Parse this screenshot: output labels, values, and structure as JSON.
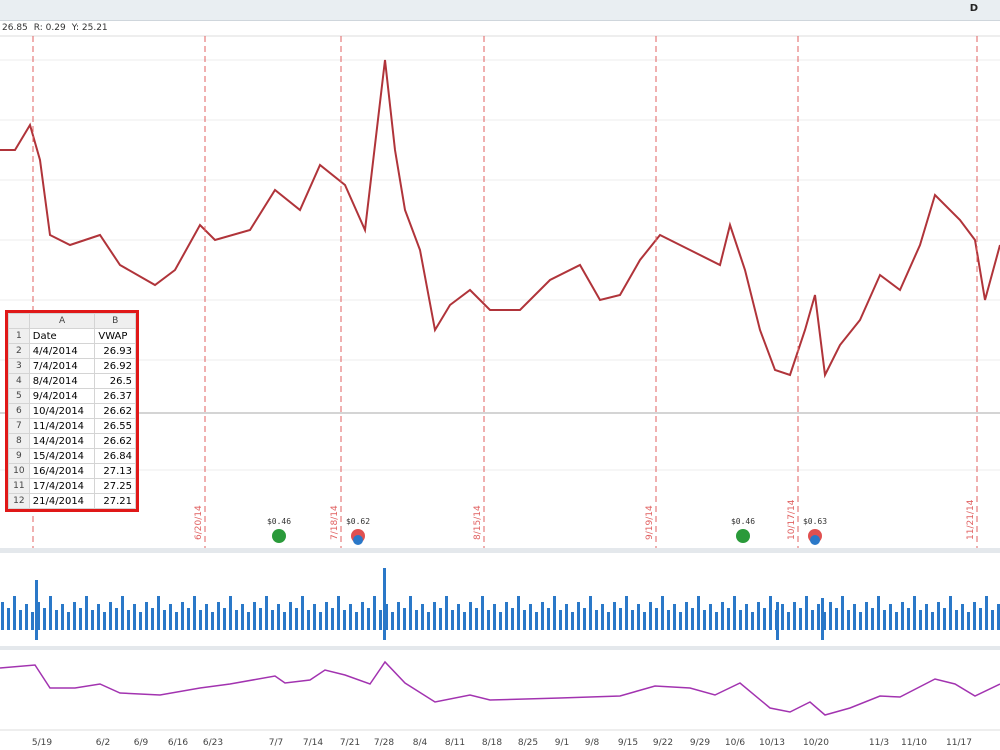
{
  "toolbar": {
    "readout": [
      "26.85",
      "R: 0.29",
      "Y: 25.21"
    ],
    "button": "D"
  },
  "chart": {
    "event_lines": [
      "6/20/14",
      "7/18/14",
      "8/15/14",
      "9/19/14",
      "10/17/14",
      "11/21/14"
    ],
    "dividends": [
      "$0.46",
      "$0.62",
      "$0.46",
      "$0.63"
    ],
    "x_axis": [
      "5/19",
      "6/2",
      "6/9",
      "6/16",
      "6/23",
      "7/7",
      "7/14",
      "7/21",
      "7/28",
      "8/4",
      "8/11",
      "8/18",
      "8/25",
      "9/1",
      "9/8",
      "9/15",
      "9/22",
      "9/29",
      "10/6",
      "10/13",
      "10/20",
      "11/3",
      "11/10",
      "11/17"
    ]
  },
  "table": {
    "columns": [
      "A",
      "B"
    ],
    "row_numbers": [
      1,
      2,
      3,
      4,
      5,
      6,
      7,
      8,
      9,
      10,
      11,
      12
    ],
    "rows": [
      [
        "Date",
        "VWAP"
      ],
      [
        "4/4/2014",
        26.93
      ],
      [
        "7/4/2014",
        26.92
      ],
      [
        "8/4/2014",
        26.5
      ],
      [
        "9/4/2014",
        26.37
      ],
      [
        "10/4/2014",
        26.62
      ],
      [
        "11/4/2014",
        26.55
      ],
      [
        "14/4/2014",
        26.62
      ],
      [
        "15/4/2014",
        26.84
      ],
      [
        "16/4/2014",
        27.13
      ],
      [
        "17/4/2014",
        27.25
      ],
      [
        "21/4/2014",
        27.21
      ]
    ]
  }
}
